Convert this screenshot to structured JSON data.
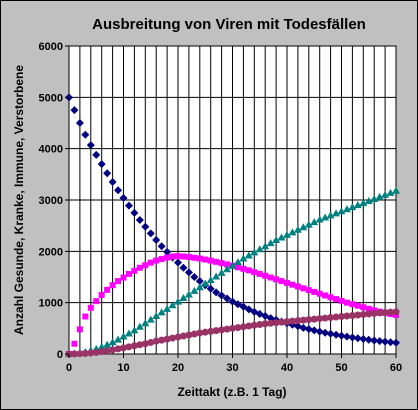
{
  "chart_data": {
    "type": "scatter",
    "title": "Ausbreitung von Viren mit Todesfällen",
    "xlabel": "Zeittakt (z.B. 1 Tag)",
    "ylabel": "Anzahl Gesunde, Kranke, Immune, Verstorbene",
    "xlim": [
      0,
      60
    ],
    "ylim": [
      0,
      6000
    ],
    "x_ticks": [
      "0",
      "10",
      "20",
      "30",
      "40",
      "50",
      "60"
    ],
    "y_ticks": [
      "0",
      "1000",
      "2000",
      "3000",
      "4000",
      "5000",
      "6000"
    ],
    "grid": true,
    "legend": "none",
    "background": "#ffffff",
    "x": [
      0,
      1,
      2,
      3,
      4,
      5,
      6,
      7,
      8,
      9,
      10,
      11,
      12,
      13,
      14,
      15,
      16,
      17,
      18,
      19,
      20,
      21,
      22,
      23,
      24,
      25,
      26,
      27,
      28,
      29,
      30,
      31,
      32,
      33,
      34,
      35,
      36,
      37,
      38,
      39,
      40,
      41,
      42,
      43,
      44,
      45,
      46,
      47,
      48,
      49,
      50,
      51,
      52,
      53,
      54,
      55,
      56,
      57,
      58,
      59,
      60
    ],
    "series": [
      {
        "color": "#000080",
        "marker": "diamond",
        "values": [
          5000,
          4750,
          4500,
          4270,
          4070,
          3880,
          3700,
          3520,
          3350,
          3190,
          3040,
          2890,
          2750,
          2610,
          2480,
          2350,
          2220,
          2100,
          1990,
          1880,
          1780,
          1680,
          1590,
          1500,
          1420,
          1340,
          1270,
          1200,
          1140,
          1080,
          1020,
          970,
          920,
          870,
          820,
          780,
          740,
          700,
          665,
          630,
          600,
          570,
          540,
          510,
          485,
          460,
          435,
          415,
          395,
          375,
          355,
          338,
          322,
          306,
          291,
          277,
          264,
          252,
          240,
          229,
          220
        ]
      },
      {
        "color": "#ff00ff",
        "marker": "square",
        "values": [
          0,
          200,
          480,
          730,
          900,
          1030,
          1150,
          1250,
          1340,
          1420,
          1490,
          1560,
          1620,
          1680,
          1730,
          1780,
          1820,
          1850,
          1880,
          1900,
          1905,
          1900,
          1890,
          1875,
          1860,
          1840,
          1820,
          1795,
          1770,
          1745,
          1720,
          1690,
          1660,
          1630,
          1595,
          1560,
          1525,
          1490,
          1455,
          1420,
          1385,
          1350,
          1315,
          1280,
          1245,
          1210,
          1175,
          1140,
          1105,
          1070,
          1035,
          1000,
          970,
          940,
          910,
          880,
          850,
          825,
          800,
          780,
          760
        ]
      },
      {
        "color": "#008080",
        "marker": "triangle",
        "values": [
          0,
          10,
          20,
          40,
          70,
          100,
          140,
          180,
          230,
          280,
          340,
          400,
          460,
          530,
          600,
          670,
          740,
          810,
          880,
          950,
          1020,
          1090,
          1160,
          1230,
          1300,
          1370,
          1440,
          1510,
          1580,
          1650,
          1720,
          1790,
          1860,
          1920,
          1980,
          2040,
          2100,
          2160,
          2220,
          2270,
          2320,
          2370,
          2420,
          2470,
          2520,
          2570,
          2620,
          2660,
          2700,
          2740,
          2780,
          2820,
          2860,
          2900,
          2940,
          2980,
          3020,
          3060,
          3100,
          3140,
          3180
        ]
      },
      {
        "color": "#993366",
        "marker": "circle",
        "values": [
          0,
          2,
          6,
          12,
          20,
          30,
          45,
          60,
          80,
          100,
          120,
          140,
          160,
          180,
          200,
          225,
          250,
          270,
          290,
          310,
          330,
          350,
          370,
          390,
          410,
          425,
          440,
          455,
          470,
          485,
          500,
          515,
          530,
          545,
          560,
          575,
          590,
          600,
          610,
          620,
          630,
          640,
          650,
          660,
          670,
          680,
          690,
          700,
          710,
          720,
          730,
          740,
          750,
          760,
          770,
          780,
          790,
          800,
          810,
          815,
          820
        ]
      }
    ]
  }
}
